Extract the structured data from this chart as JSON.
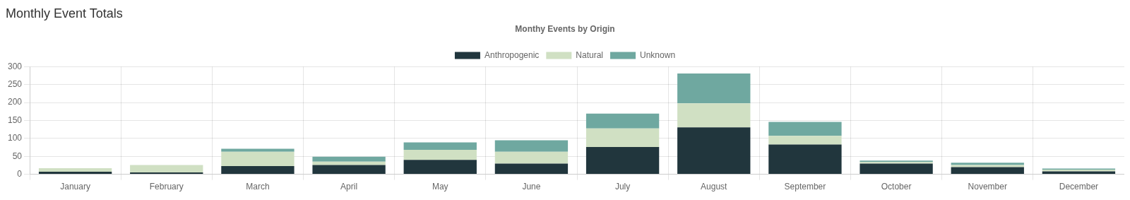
{
  "chart_data": {
    "type": "bar",
    "title": "Monthly Event Totals",
    "subtitle": "Monthy Events by Origin",
    "categories": [
      "January",
      "February",
      "March",
      "April",
      "May",
      "June",
      "July",
      "August",
      "September",
      "October",
      "November",
      "December"
    ],
    "series": [
      {
        "name": "Anthropogenic",
        "color": "#21363d",
        "values": [
          7,
          5,
          23,
          26,
          40,
          30,
          76,
          131,
          83,
          30,
          20,
          8
        ]
      },
      {
        "name": "Natural",
        "color": "#d0e0c3",
        "values": [
          10,
          21,
          40,
          9,
          28,
          33,
          52,
          67,
          24,
          4,
          6,
          5
        ]
      },
      {
        "name": "Unknown",
        "color": "#6fa8a0",
        "values": [
          0,
          0,
          8,
          14,
          21,
          32,
          41,
          83,
          39,
          4,
          6,
          3
        ]
      }
    ],
    "stacked": true,
    "ylim": [
      0,
      300
    ],
    "yticks": [
      0,
      50,
      100,
      150,
      200,
      250,
      300
    ],
    "grid": true,
    "legend": "top"
  }
}
